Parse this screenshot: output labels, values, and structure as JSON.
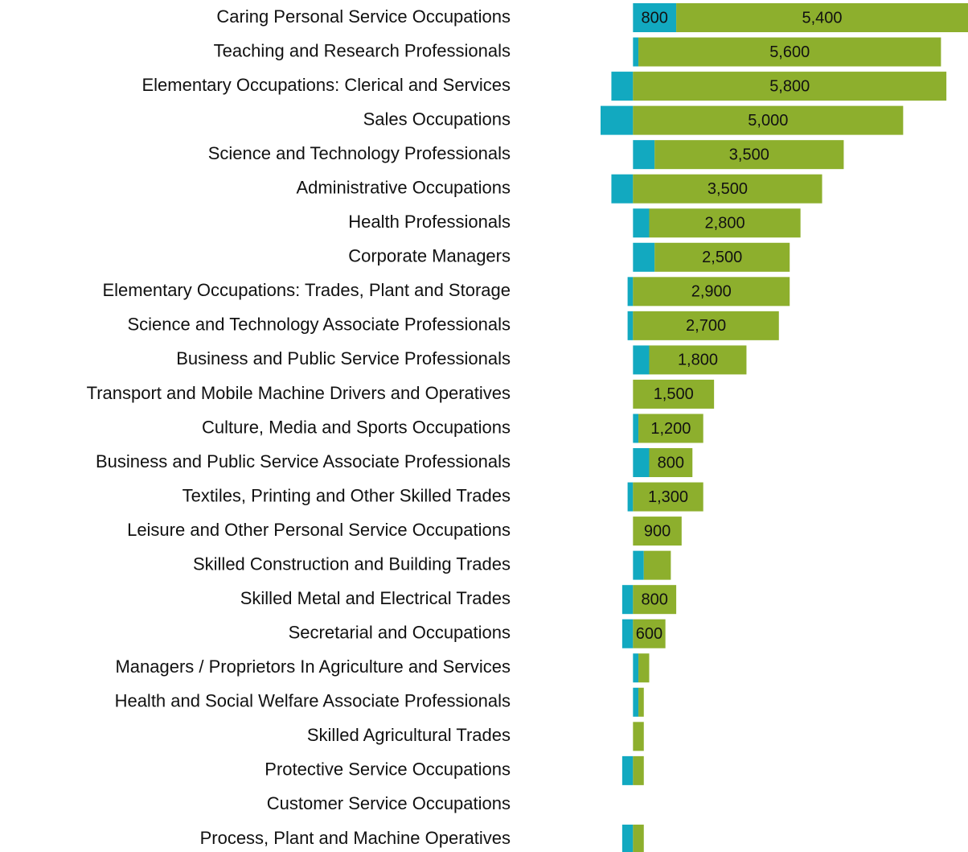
{
  "chart_data": {
    "type": "bar",
    "orientation": "horizontal",
    "stacked": true,
    "categories": [
      "Caring Personal Service Occupations",
      "Teaching and Research Professionals",
      "Elementary Occupations: Clerical and Services",
      "Sales Occupations",
      "Science and Technology Professionals",
      "Administrative Occupations",
      "Health Professionals",
      "Corporate Managers",
      "Elementary Occupations: Trades, Plant and Storage",
      "Science and Technology Associate Professionals",
      "Business and Public Service Professionals",
      "Transport and Mobile Machine Drivers and Operatives",
      "Culture, Media and Sports Occupations",
      "Business and Public Service Associate Professionals",
      "Textiles, Printing and Other Skilled Trades",
      "Leisure and Other Personal Service Occupations",
      "Skilled Construction and Building Trades",
      "Skilled Metal and Electrical Trades",
      "Secretarial and Occupations",
      "Managers / Proprietors In Agriculture and Services",
      "Health and Social Welfare Associate Professionals",
      "Skilled Agricultural Trades",
      "Protective Service Occupations",
      "Customer Service Occupations",
      "Process, Plant and Machine Operatives"
    ],
    "series": [
      {
        "color": "#12a9c0",
        "values": [
          800,
          100,
          -400,
          -600,
          400,
          -400,
          300,
          400,
          -100,
          -100,
          300,
          0,
          100,
          300,
          -100,
          0,
          200,
          -200,
          -200,
          100,
          100,
          0,
          -200,
          0,
          -200
        ],
        "value_labels": [
          "800",
          null,
          null,
          null,
          null,
          null,
          null,
          null,
          null,
          null,
          null,
          null,
          null,
          null,
          null,
          null,
          null,
          null,
          null,
          null,
          null,
          null,
          null,
          null,
          null
        ]
      },
      {
        "color": "#8daf2d",
        "values": [
          5400,
          5600,
          5800,
          5000,
          3500,
          3500,
          2800,
          2500,
          2900,
          2700,
          1800,
          1500,
          1200,
          800,
          1300,
          900,
          500,
          800,
          600,
          200,
          100,
          200,
          200,
          0,
          200
        ],
        "value_labels": [
          "5,400",
          "5,600",
          "5,800",
          "5,000",
          "3,500",
          "3,500",
          "2,800",
          "2,500",
          "2,900",
          "2,700",
          "1,800",
          "1,500",
          "1,200",
          "800",
          "1,300",
          "900",
          null,
          "800",
          "600",
          null,
          null,
          null,
          null,
          null,
          null
        ]
      }
    ],
    "xlim": [
      -600,
      6200
    ]
  }
}
